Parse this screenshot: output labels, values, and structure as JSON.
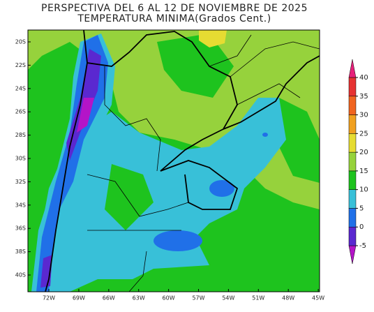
{
  "title": [
    "PERSPECTIVA DEL 6 AL 12 DE NOVIEMBRE DE 2025",
    "TEMPERATURA MINIMA(Grados Cent.)"
  ],
  "lat_labels": [
    "20S",
    "22S",
    "24S",
    "26S",
    "28S",
    "30S",
    "32S",
    "34S",
    "36S",
    "38S",
    "40S"
  ],
  "lon_labels": [
    "72W",
    "69W",
    "66W",
    "63W",
    "60W",
    "57W",
    "54W",
    "51W",
    "48W",
    "45W"
  ],
  "colorbar": {
    "levels": [
      -5,
      0,
      5,
      10,
      15,
      20,
      25,
      30,
      35,
      40
    ],
    "colors": [
      "#b414c8",
      "#5a28d0",
      "#2070e8",
      "#38c0d8",
      "#1ec31e",
      "#96d23c",
      "#e6dc32",
      "#f0a020",
      "#f06420",
      "#e63232",
      "#e6207a"
    ]
  }
}
